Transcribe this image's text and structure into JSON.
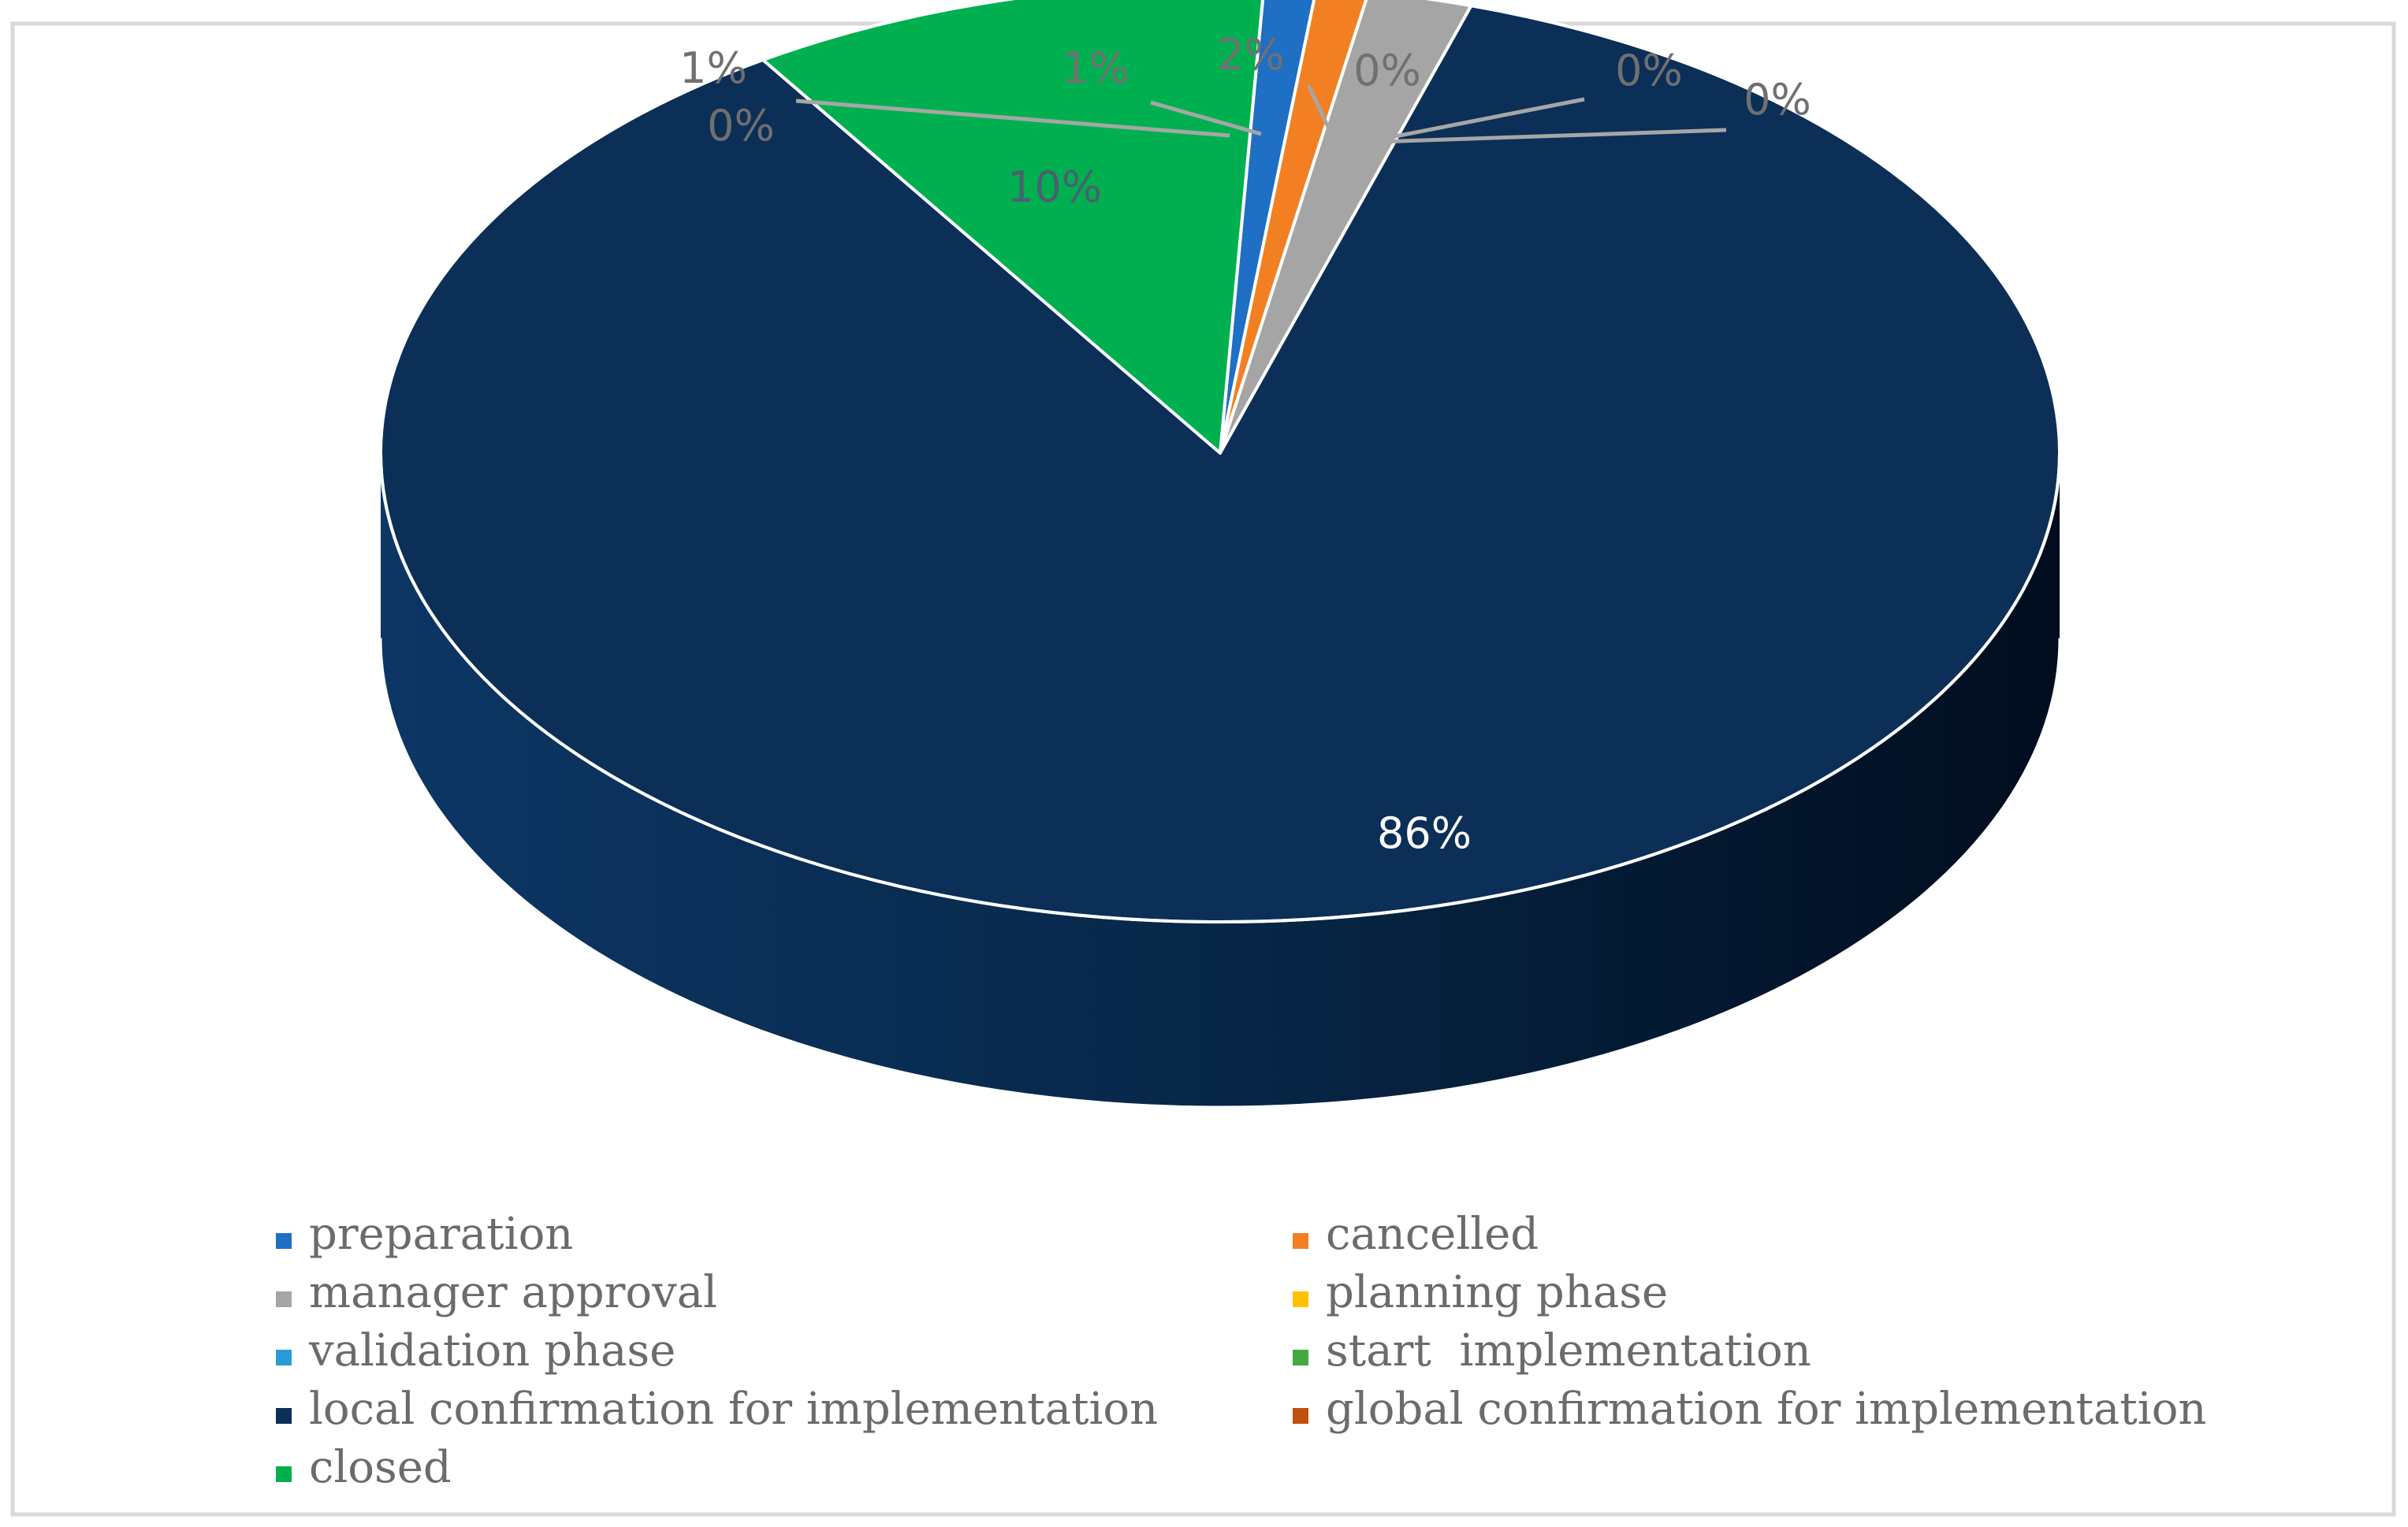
{
  "chart_data": {
    "type": "pie",
    "style": "3d",
    "title": "",
    "categories": [
      "preparation",
      "cancelled",
      "manager approval",
      "planning phase",
      "validation phase",
      "start  implementation",
      "local confirmation for implementation",
      "global confirmation for implementation",
      "closed"
    ],
    "values": [
      1,
      1,
      2,
      0,
      0,
      0,
      86,
      0,
      10
    ],
    "labels": [
      "1%",
      "1%",
      "2%",
      "0%",
      "0%",
      "0%",
      "86%",
      "0%",
      "10%"
    ],
    "colors": [
      "#1f6fc5",
      "#f28022",
      "#a5a5a5",
      "#ffc000",
      "#2a9bd7",
      "#44a93f",
      "#0b2f57",
      "#c0500d",
      "#00b050"
    ],
    "legend_position": "bottom"
  }
}
